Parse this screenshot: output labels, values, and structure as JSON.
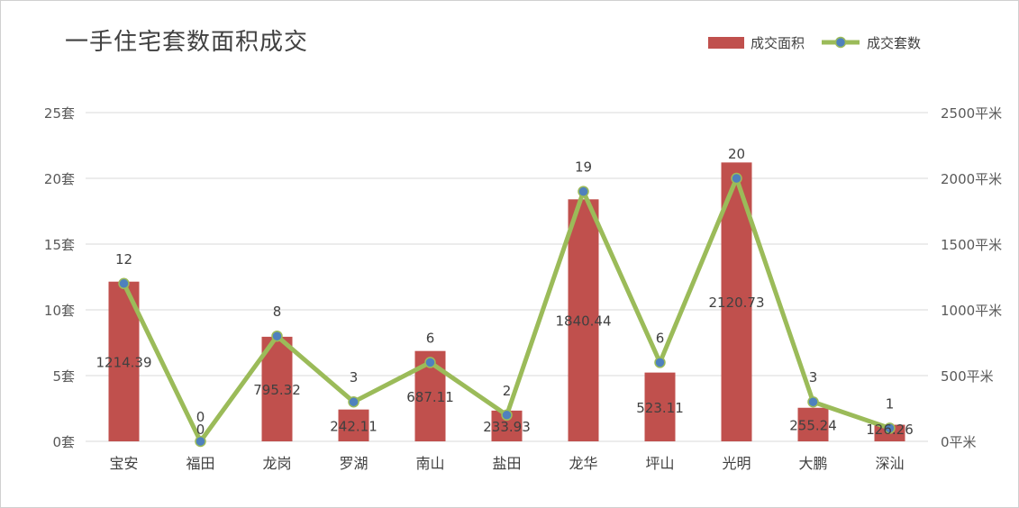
{
  "chart_data": {
    "type": "bar+line",
    "title": "一手住宅套数面积成交",
    "categories": [
      "宝安",
      "福田",
      "龙岗",
      "罗湖",
      "南山",
      "盐田",
      "龙华",
      "坪山",
      "光明",
      "大鹏",
      "深汕"
    ],
    "series": [
      {
        "name": "成交面积",
        "type": "bar",
        "axis": "right",
        "color": "#c0504d",
        "values": [
          1214.39,
          0,
          795.32,
          242.11,
          687.11,
          233.93,
          1840.44,
          523.11,
          2120.73,
          255.24,
          126.26
        ],
        "labels": [
          "1214.39",
          "0",
          "795.32",
          "242.11",
          "687.11",
          "233.93",
          "1840.44",
          "523.11",
          "2120.73",
          "255.24",
          "126.26"
        ]
      },
      {
        "name": "成交套数",
        "type": "line",
        "axis": "left",
        "color": "#9bbb59",
        "marker_color": "#4f81bd",
        "values": [
          12,
          0,
          8,
          3,
          6,
          2,
          19,
          6,
          20,
          3,
          1
        ],
        "labels": [
          "12",
          "0",
          "8",
          "3",
          "6",
          "2",
          "19",
          "6",
          "20",
          "3",
          "1"
        ]
      }
    ],
    "y_left": {
      "range": [
        0,
        25
      ],
      "ticks": [
        0,
        5,
        10,
        15,
        20,
        25
      ],
      "tick_labels": [
        "0套",
        "5套",
        "10套",
        "15套",
        "20套",
        "25套"
      ]
    },
    "y_right": {
      "range": [
        0,
        2500
      ],
      "ticks": [
        0,
        500,
        1000,
        1500,
        2000,
        2500
      ],
      "tick_labels": [
        "0平米",
        "500平米",
        "1000平米",
        "1500平米",
        "2000平米",
        "2500平米"
      ]
    },
    "grid": true,
    "legend_position": "top-right"
  }
}
